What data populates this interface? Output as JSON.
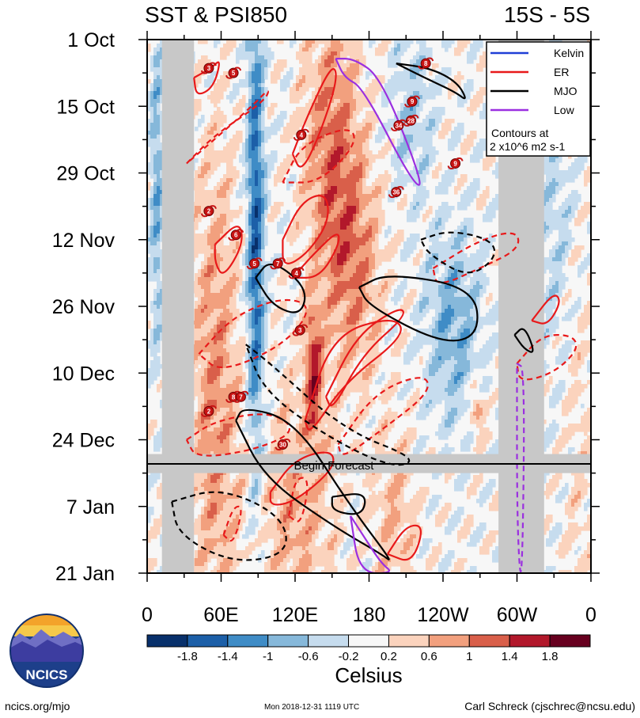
{
  "chart_data": {
    "type": "heatmap",
    "title": "SST & PSI850",
    "subtitle": "15S - 5S",
    "x_tick_labels": [
      "0",
      "60E",
      "120E",
      "180",
      "120W",
      "60W",
      "0"
    ],
    "x_range_deg_east": [
      0,
      360
    ],
    "y_tick_labels": [
      "1 Oct",
      "15 Oct",
      "29 Oct",
      "12 Nov",
      "26 Nov",
      "10 Dec",
      "24 Dec",
      "7 Jan",
      "21 Jan"
    ],
    "y_range_days": [
      0,
      112
    ],
    "forecast_label": "Begin Forecast",
    "forecast_start_day": 90,
    "legend": {
      "placement": "top-right",
      "entries": [
        {
          "name": "Kelvin",
          "color": "#1f3fd6"
        },
        {
          "name": "ER",
          "color": "#e8191a"
        },
        {
          "name": "MJO",
          "color": "#000000"
        },
        {
          "name": "Low",
          "color": "#9b2fe0"
        }
      ],
      "note_line1": "Contours at",
      "note_line2": "2 x10^6 m2 s-1"
    },
    "colorbar": {
      "unit_label": "Celsius",
      "tick_labels": [
        "-1.8",
        "-1.4",
        "-1",
        "-0.6",
        "-0.2",
        "0.2",
        "0.6",
        "1",
        "1.4",
        "1.8"
      ],
      "colors": [
        "#08306b",
        "#1c5fa8",
        "#3f8cc6",
        "#86b8da",
        "#c6dcee",
        "#f7f7f7",
        "#fbd3bd",
        "#f2a07e",
        "#d95f4a",
        "#b2182b",
        "#67001f"
      ]
    },
    "land_mask_bands_deg": [
      [
        12,
        38
      ],
      [
        285,
        322
      ]
    ],
    "storms": [
      {
        "id": "3",
        "lon": 50,
        "day": 6
      },
      {
        "id": "5",
        "lon": 70,
        "day": 7
      },
      {
        "id": "9",
        "lon": 215,
        "day": 13
      },
      {
        "id": "34",
        "lon": 204,
        "day": 18
      },
      {
        "id": "28",
        "lon": 214,
        "day": 17
      },
      {
        "id": "4",
        "lon": 125,
        "day": 20
      },
      {
        "id": "9",
        "lon": 250,
        "day": 26
      },
      {
        "id": "36",
        "lon": 202,
        "day": 32
      },
      {
        "id": "2",
        "lon": 50,
        "day": 36
      },
      {
        "id": "6",
        "lon": 72,
        "day": 41
      },
      {
        "id": "5",
        "lon": 87,
        "day": 47
      },
      {
        "id": "7",
        "lon": 106,
        "day": 47
      },
      {
        "id": "4",
        "lon": 121,
        "day": 49
      },
      {
        "id": "3",
        "lon": 124,
        "day": 61
      },
      {
        "id": "8",
        "lon": 70,
        "day": 75
      },
      {
        "id": "7",
        "lon": 76,
        "day": 75
      },
      {
        "id": "2",
        "lon": 50,
        "day": 78
      },
      {
        "id": "30",
        "lon": 110,
        "day": 85
      },
      {
        "id": "8",
        "lon": 226,
        "day": 5
      }
    ],
    "series": [
      {
        "name": "ER",
        "style": "solid",
        "path": [
          [
            38,
            8
          ],
          [
            52,
            6
          ],
          [
            60,
            4
          ],
          [
            54,
            10
          ],
          [
            40,
            12
          ],
          [
            38,
            8
          ]
        ]
      },
      {
        "name": "ER",
        "style": "dashed",
        "path": [
          [
            32,
            26
          ],
          [
            55,
            20
          ],
          [
            95,
            13
          ],
          [
            100,
            10
          ],
          [
            85,
            14
          ],
          [
            50,
            22
          ],
          [
            32,
            26
          ]
        ]
      },
      {
        "name": "ER",
        "style": "solid",
        "path": [
          [
            118,
            24
          ],
          [
            130,
            16
          ],
          [
            150,
            5
          ],
          [
            155,
            8
          ],
          [
            140,
            20
          ],
          [
            125,
            28
          ],
          [
            118,
            24
          ]
        ]
      },
      {
        "name": "ER",
        "style": "dashed",
        "path": [
          [
            110,
            30
          ],
          [
            125,
            22
          ],
          [
            165,
            18
          ],
          [
            170,
            22
          ],
          [
            140,
            30
          ],
          [
            110,
            30
          ]
        ]
      },
      {
        "name": "ER",
        "style": "solid",
        "path": [
          [
            110,
            42
          ],
          [
            125,
            34
          ],
          [
            145,
            32
          ],
          [
            148,
            38
          ],
          [
            130,
            45
          ],
          [
            110,
            48
          ],
          [
            110,
            42
          ]
        ]
      },
      {
        "name": "ER",
        "style": "solid",
        "path": [
          [
            118,
            50
          ],
          [
            135,
            45
          ],
          [
            155,
            40
          ],
          [
            156,
            43
          ],
          [
            140,
            50
          ],
          [
            118,
            50
          ]
        ]
      },
      {
        "name": "ER",
        "style": "solid",
        "path": [
          [
            55,
            43
          ],
          [
            75,
            38
          ],
          [
            78,
            43
          ],
          [
            62,
            50
          ],
          [
            55,
            47
          ],
          [
            55,
            43
          ]
        ]
      },
      {
        "name": "ER",
        "style": "dashed",
        "path": [
          [
            42,
            66
          ],
          [
            70,
            58
          ],
          [
            110,
            54
          ],
          [
            135,
            56
          ],
          [
            112,
            64
          ],
          [
            60,
            70
          ],
          [
            42,
            66
          ]
        ]
      },
      {
        "name": "ER",
        "style": "solid",
        "path": [
          [
            128,
            80
          ],
          [
            150,
            62
          ],
          [
            200,
            58
          ],
          [
            210,
            62
          ],
          [
            160,
            72
          ],
          [
            132,
            83
          ],
          [
            128,
            80
          ]
        ]
      },
      {
        "name": "ER",
        "style": "solid",
        "path": [
          [
            145,
            75
          ],
          [
            170,
            62
          ],
          [
            205,
            56
          ],
          [
            210,
            58
          ],
          [
            175,
            66
          ],
          [
            150,
            78
          ],
          [
            145,
            75
          ]
        ]
      },
      {
        "name": "ER",
        "style": "dashed",
        "path": [
          [
            155,
            85
          ],
          [
            185,
            74
          ],
          [
            225,
            70
          ],
          [
            230,
            74
          ],
          [
            190,
            82
          ],
          [
            158,
            88
          ],
          [
            155,
            85
          ]
        ]
      },
      {
        "name": "ER",
        "style": "dashed",
        "path": [
          [
            232,
            48
          ],
          [
            270,
            42
          ],
          [
            300,
            40
          ],
          [
            302,
            44
          ],
          [
            270,
            48
          ],
          [
            235,
            52
          ],
          [
            232,
            48
          ]
        ]
      },
      {
        "name": "ER",
        "style": "solid",
        "path": [
          [
            312,
            59
          ],
          [
            330,
            53
          ],
          [
            336,
            55
          ],
          [
            325,
            60
          ],
          [
            312,
            59
          ]
        ]
      },
      {
        "name": "ER",
        "style": "dashed",
        "path": [
          [
            300,
            68
          ],
          [
            320,
            62
          ],
          [
            345,
            62
          ],
          [
            350,
            65
          ],
          [
            330,
            70
          ],
          [
            302,
            72
          ],
          [
            300,
            68
          ]
        ]
      },
      {
        "name": "ER",
        "style": "dashed",
        "path": [
          [
            32,
            84
          ],
          [
            55,
            80
          ],
          [
            100,
            78
          ],
          [
            122,
            82
          ],
          [
            90,
            86
          ],
          [
            40,
            88
          ],
          [
            32,
            84
          ]
        ]
      },
      {
        "name": "ER",
        "style": "solid",
        "path": [
          [
            100,
            95
          ],
          [
            120,
            88
          ],
          [
            150,
            86
          ],
          [
            152,
            90
          ],
          [
            120,
            97
          ],
          [
            100,
            98
          ],
          [
            100,
            95
          ]
        ]
      },
      {
        "name": "ER",
        "style": "dashed",
        "path": [
          [
            115,
            100
          ],
          [
            120,
            92
          ],
          [
            132,
            92
          ],
          [
            125,
            102
          ],
          [
            115,
            100
          ]
        ]
      },
      {
        "name": "ER",
        "style": "solid",
        "path": [
          [
            195,
            108
          ],
          [
            210,
            102
          ],
          [
            225,
            102
          ],
          [
            215,
            110
          ],
          [
            195,
            108
          ]
        ]
      },
      {
        "name": "ER",
        "style": "dashed",
        "path": [
          [
            62,
            104
          ],
          [
            70,
            98
          ],
          [
            78,
            98
          ],
          [
            70,
            106
          ],
          [
            62,
            104
          ]
        ]
      },
      {
        "name": "MJO",
        "style": "solid",
        "path": [
          [
            202,
            5
          ],
          [
            225,
            8
          ],
          [
            250,
            11
          ],
          [
            260,
            13
          ],
          [
            252,
            9
          ],
          [
            230,
            6
          ],
          [
            202,
            5
          ]
        ]
      },
      {
        "name": "MJO",
        "style": "dashed",
        "path": [
          [
            222,
            42
          ],
          [
            245,
            40
          ],
          [
            280,
            42
          ],
          [
            283,
            46
          ],
          [
            260,
            50
          ],
          [
            228,
            45
          ],
          [
            222,
            42
          ]
        ]
      },
      {
        "name": "MJO",
        "style": "solid",
        "path": [
          [
            88,
            50
          ],
          [
            100,
            46
          ],
          [
            130,
            52
          ],
          [
            125,
            58
          ],
          [
            102,
            56
          ],
          [
            88,
            50
          ]
        ]
      },
      {
        "name": "MJO",
        "style": "solid",
        "path": [
          [
            172,
            52
          ],
          [
            195,
            49
          ],
          [
            265,
            52
          ],
          [
            270,
            62
          ],
          [
            240,
            64
          ],
          [
            180,
            56
          ],
          [
            172,
            52
          ]
        ]
      },
      {
        "name": "MJO",
        "style": "solid",
        "path": [
          [
            298,
            62
          ],
          [
            306,
            60
          ],
          [
            315,
            66
          ],
          [
            306,
            65
          ],
          [
            298,
            62
          ]
        ]
      },
      {
        "name": "MJO",
        "style": "dashed",
        "path": [
          [
            80,
            64
          ],
          [
            100,
            68
          ],
          [
            160,
            82
          ],
          [
            220,
            88
          ],
          [
            200,
            90
          ],
          [
            150,
            84
          ],
          [
            95,
            74
          ],
          [
            80,
            64
          ]
        ]
      },
      {
        "name": "MJO",
        "style": "solid",
        "path": [
          [
            72,
            80
          ],
          [
            78,
            77
          ],
          [
            120,
            80
          ],
          [
            165,
            98
          ],
          [
            200,
            110
          ],
          [
            190,
            108
          ],
          [
            150,
            102
          ],
          [
            95,
            92
          ],
          [
            72,
            80
          ]
        ]
      },
      {
        "name": "MJO",
        "style": "dashed",
        "path": [
          [
            20,
            97
          ],
          [
            60,
            94
          ],
          [
            110,
            100
          ],
          [
            115,
            108
          ],
          [
            70,
            110
          ],
          [
            25,
            104
          ],
          [
            20,
            97
          ]
        ]
      },
      {
        "name": "MJO",
        "style": "solid",
        "path": [
          [
            150,
            96
          ],
          [
            178,
            95
          ],
          [
            175,
            100
          ],
          [
            150,
            99
          ],
          [
            150,
            96
          ]
        ]
      },
      {
        "name": "Low",
        "style": "solid",
        "path": [
          [
            153,
            4
          ],
          [
            168,
            4
          ],
          [
            190,
            8
          ],
          [
            225,
            31
          ],
          [
            215,
            30
          ],
          [
            175,
            10
          ],
          [
            160,
            8
          ],
          [
            153,
            4
          ]
        ]
      },
      {
        "name": "Low",
        "style": "dashed",
        "path": [
          [
            300,
            68
          ],
          [
            306,
            69
          ],
          [
            305,
            103
          ],
          [
            303,
            115
          ],
          [
            300,
            100
          ],
          [
            300,
            68
          ]
        ]
      },
      {
        "name": "Low",
        "style": "solid",
        "path": [
          [
            165,
            100
          ],
          [
            175,
            104
          ],
          [
            190,
            110
          ],
          [
            200,
            112
          ],
          [
            172,
            112
          ],
          [
            165,
            100
          ]
        ]
      }
    ]
  },
  "footer": {
    "logo_text": "NCICS",
    "site": "ncics.org/mjo",
    "timestamp": "Mon 2018-12-31 1119 UTC",
    "author": "Carl Schreck (cjschrec@ncsu.edu)"
  }
}
